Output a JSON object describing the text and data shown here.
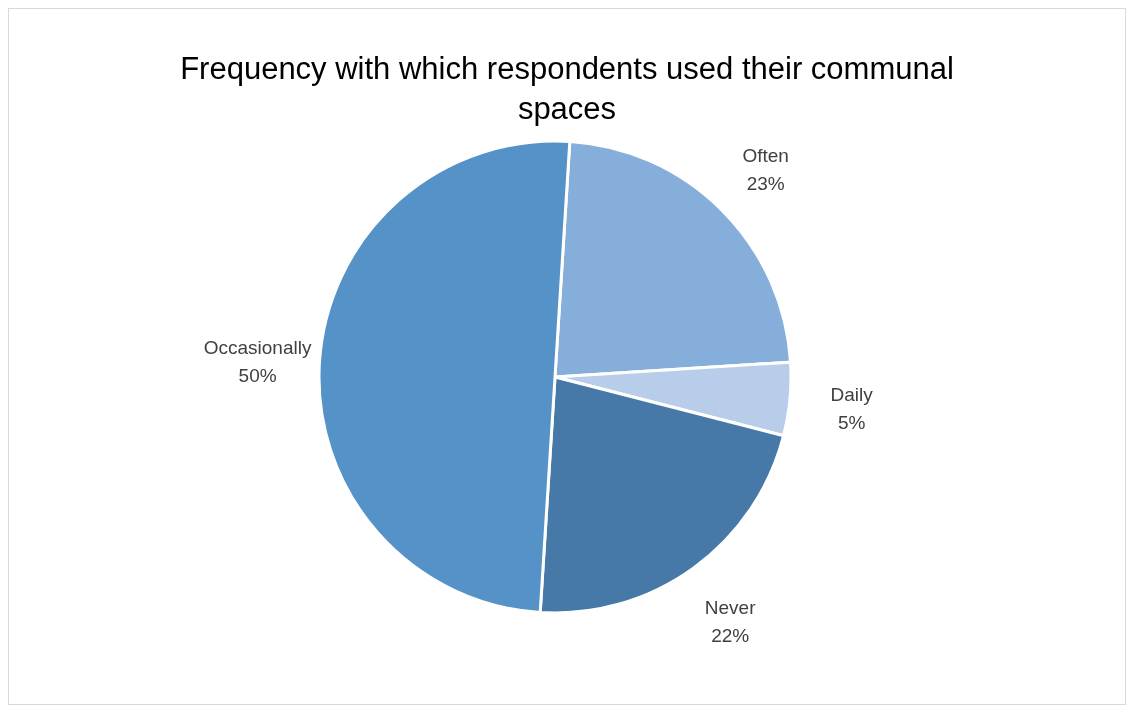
{
  "chart_data": {
    "type": "pie",
    "title": "Frequency with which respondents used their communal spaces",
    "categories": [
      "Often",
      "Daily",
      "Never",
      "Occasionally"
    ],
    "values": [
      23,
      5,
      22,
      50
    ],
    "value_labels": [
      "23%",
      "5%",
      "22%",
      "50%"
    ],
    "colors": [
      "#86aedb",
      "#b8cde9",
      "#4679a8",
      "#5592c8"
    ]
  }
}
